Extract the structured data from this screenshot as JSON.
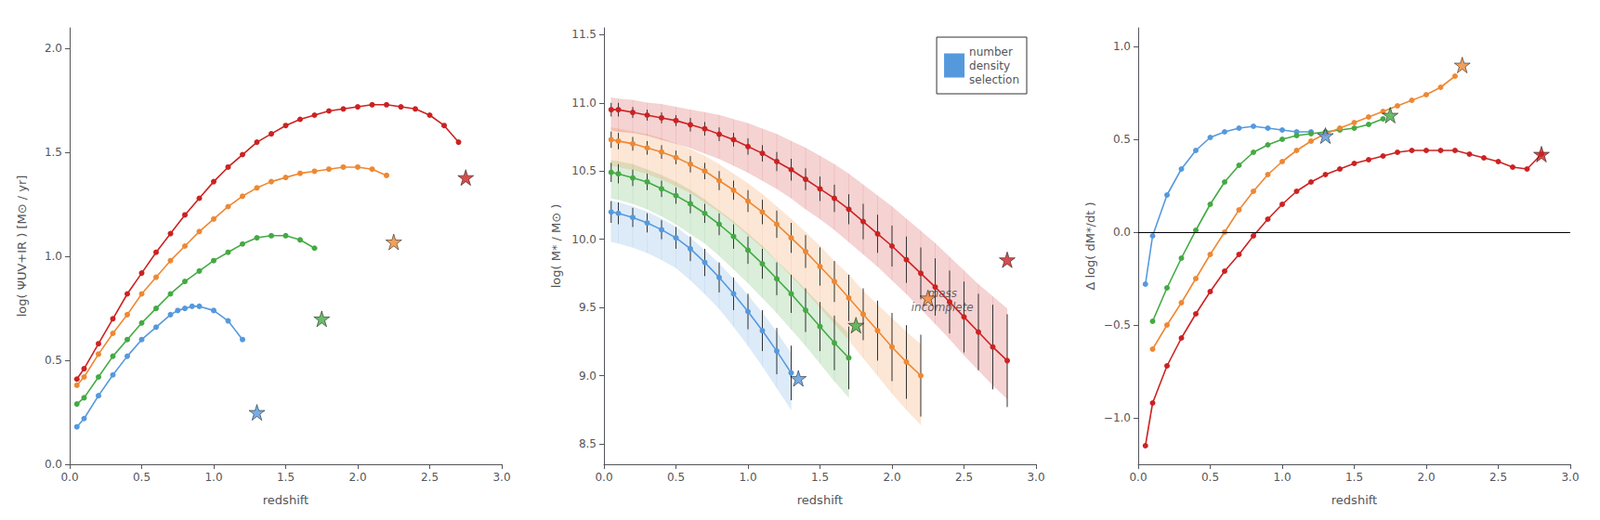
{
  "chart_data": [
    {
      "type": "line",
      "xlabel": "redshift",
      "ylabel": "log( ΨUV+IR ) [M⊙ / yr]",
      "xlim": [
        0.0,
        3.0
      ],
      "ylim": [
        0.0,
        2.1
      ],
      "xticks": [
        {
          "value": 0,
          "label": "0.0"
        },
        0.5,
        {
          "value": 1,
          "label": "1.0"
        },
        1.5,
        {
          "value": 2,
          "label": "2.0"
        },
        2.5,
        {
          "value": 3,
          "label": "3.0"
        }
      ],
      "yticks": [
        {
          "value": 0,
          "label": "0.0"
        },
        0.5,
        {
          "value": 1,
          "label": "1.0"
        },
        1.5,
        {
          "value": 2,
          "label": "2.0"
        }
      ],
      "grid": false,
      "series": [
        {
          "color": "#5599dd",
          "marker": "circle",
          "x": [
            0.05,
            0.1,
            0.2,
            0.3,
            0.4,
            0.5,
            0.6,
            0.7,
            0.75,
            0.8,
            0.85,
            0.9,
            1.0,
            1.1,
            1.2
          ],
          "values": [
            0.18,
            0.22,
            0.33,
            0.43,
            0.52,
            0.6,
            0.66,
            0.72,
            0.74,
            0.75,
            0.76,
            0.76,
            0.74,
            0.69,
            0.6
          ],
          "star_x": 1.3,
          "star_y": 0.25
        },
        {
          "color": "#44aa44",
          "marker": "circle",
          "x": [
            0.05,
            0.1,
            0.2,
            0.3,
            0.4,
            0.5,
            0.6,
            0.7,
            0.8,
            0.9,
            1.0,
            1.1,
            1.2,
            1.3,
            1.4,
            1.5,
            1.6,
            1.7
          ],
          "values": [
            0.29,
            0.32,
            0.42,
            0.52,
            0.6,
            0.68,
            0.75,
            0.82,
            0.88,
            0.93,
            0.98,
            1.02,
            1.06,
            1.09,
            1.1,
            1.1,
            1.08,
            1.04
          ],
          "star_x": 1.75,
          "star_y": 0.7
        },
        {
          "color": "#ee8833",
          "marker": "circle",
          "x": [
            0.05,
            0.1,
            0.2,
            0.3,
            0.4,
            0.5,
            0.6,
            0.7,
            0.8,
            0.9,
            1.0,
            1.1,
            1.2,
            1.3,
            1.4,
            1.5,
            1.6,
            1.7,
            1.8,
            1.9,
            2.0,
            2.1,
            2.2
          ],
          "values": [
            0.38,
            0.42,
            0.53,
            0.63,
            0.72,
            0.82,
            0.9,
            0.98,
            1.05,
            1.12,
            1.18,
            1.24,
            1.29,
            1.33,
            1.36,
            1.38,
            1.4,
            1.41,
            1.42,
            1.43,
            1.43,
            1.42,
            1.39
          ],
          "star_x": 2.25,
          "star_y": 1.07
        },
        {
          "color": "#cc2222",
          "marker": "circle",
          "x": [
            0.05,
            0.1,
            0.2,
            0.3,
            0.4,
            0.5,
            0.6,
            0.7,
            0.8,
            0.9,
            1.0,
            1.1,
            1.2,
            1.3,
            1.4,
            1.5,
            1.6,
            1.7,
            1.8,
            1.9,
            2.0,
            2.1,
            2.2,
            2.3,
            2.4,
            2.5,
            2.6,
            2.7
          ],
          "values": [
            0.41,
            0.46,
            0.58,
            0.7,
            0.82,
            0.92,
            1.02,
            1.11,
            1.2,
            1.28,
            1.36,
            1.43,
            1.49,
            1.55,
            1.59,
            1.63,
            1.66,
            1.68,
            1.7,
            1.71,
            1.72,
            1.73,
            1.73,
            1.72,
            1.71,
            1.68,
            1.63,
            1.55
          ],
          "star_x": 2.75,
          "star_y": 1.38
        }
      ]
    },
    {
      "type": "line",
      "xlabel": "redshift",
      "ylabel": "log( M* / M⊙ )",
      "xlim": [
        0.0,
        3.0
      ],
      "ylim": [
        8.35,
        11.55
      ],
      "xticks": [
        {
          "value": 0,
          "label": "0.0"
        },
        0.5,
        {
          "value": 1,
          "label": "1.0"
        },
        1.5,
        {
          "value": 2,
          "label": "2.0"
        },
        2.5,
        {
          "value": 3,
          "label": "3.0"
        }
      ],
      "yticks": [
        8.5,
        {
          "value": 9,
          "label": "9.0"
        },
        9.5,
        {
          "value": 10,
          "label": "10.0"
        },
        10.5,
        {
          "value": 11,
          "label": "11.0"
        },
        11.5
      ],
      "grid": false,
      "legend": "upper right",
      "band_label": "number\ndensity\nselection",
      "annotations": [
        {
          "text": "mass\nincomplete",
          "x": 2.35,
          "y": 9.55
        }
      ],
      "series": [
        {
          "color": "#5599dd",
          "marker": "circle",
          "x": [
            0.05,
            0.1,
            0.2,
            0.3,
            0.4,
            0.5,
            0.6,
            0.7,
            0.8,
            0.9,
            1.0,
            1.1,
            1.2,
            1.3
          ],
          "values": [
            10.2,
            10.19,
            10.16,
            10.12,
            10.07,
            10.01,
            9.93,
            9.83,
            9.72,
            9.6,
            9.47,
            9.33,
            9.18,
            9.02
          ],
          "err": [
            0.08,
            0.08,
            0.07,
            0.07,
            0.07,
            0.08,
            0.09,
            0.1,
            0.11,
            0.12,
            0.13,
            0.15,
            0.17,
            0.2
          ],
          "band_lo": [
            9.98,
            9.97,
            9.94,
            9.9,
            9.85,
            9.79,
            9.7,
            9.6,
            9.49,
            9.36,
            9.22,
            9.07,
            8.91,
            8.75
          ],
          "band_hi": [
            10.28,
            10.27,
            10.24,
            10.2,
            10.15,
            10.09,
            10.01,
            9.92,
            9.82,
            9.71,
            9.59,
            9.46,
            9.32,
            9.16
          ],
          "star_x": 1.35,
          "star_y": 8.98
        },
        {
          "color": "#44aa44",
          "marker": "circle",
          "x": [
            0.05,
            0.1,
            0.2,
            0.3,
            0.4,
            0.5,
            0.6,
            0.7,
            0.8,
            0.9,
            1.0,
            1.1,
            1.2,
            1.3,
            1.4,
            1.5,
            1.6,
            1.7
          ],
          "values": [
            10.49,
            10.48,
            10.45,
            10.42,
            10.37,
            10.32,
            10.26,
            10.19,
            10.11,
            10.02,
            9.92,
            9.82,
            9.71,
            9.6,
            9.48,
            9.36,
            9.24,
            9.13
          ],
          "err": [
            0.07,
            0.07,
            0.06,
            0.06,
            0.06,
            0.06,
            0.07,
            0.07,
            0.08,
            0.09,
            0.1,
            0.11,
            0.12,
            0.14,
            0.16,
            0.18,
            0.2,
            0.23
          ],
          "band_lo": [
            10.3,
            10.29,
            10.26,
            10.22,
            10.17,
            10.11,
            10.04,
            9.97,
            9.88,
            9.78,
            9.68,
            9.57,
            9.46,
            9.34,
            9.22,
            9.09,
            8.96,
            8.84
          ],
          "band_hi": [
            10.58,
            10.57,
            10.55,
            10.51,
            10.47,
            10.42,
            10.36,
            10.29,
            10.21,
            10.13,
            10.04,
            9.95,
            9.84,
            9.74,
            9.63,
            9.52,
            9.41,
            9.31
          ],
          "star_x": 1.75,
          "star_y": 9.37
        },
        {
          "color": "#ee8833",
          "marker": "circle",
          "x": [
            0.05,
            0.1,
            0.2,
            0.3,
            0.4,
            0.5,
            0.6,
            0.7,
            0.8,
            0.9,
            1.0,
            1.1,
            1.2,
            1.3,
            1.4,
            1.5,
            1.6,
            1.7,
            1.8,
            1.9,
            2.0,
            2.1,
            2.2
          ],
          "values": [
            10.73,
            10.72,
            10.7,
            10.67,
            10.64,
            10.6,
            10.55,
            10.5,
            10.43,
            10.36,
            10.28,
            10.2,
            10.11,
            10.01,
            9.91,
            9.8,
            9.69,
            9.57,
            9.45,
            9.33,
            9.21,
            9.1,
            9.0
          ],
          "err": [
            0.06,
            0.06,
            0.05,
            0.05,
            0.05,
            0.05,
            0.06,
            0.06,
            0.07,
            0.07,
            0.08,
            0.09,
            0.1,
            0.11,
            0.12,
            0.14,
            0.15,
            0.17,
            0.19,
            0.22,
            0.25,
            0.27,
            0.3
          ],
          "band_lo": [
            10.54,
            10.53,
            10.51,
            10.48,
            10.44,
            10.39,
            10.34,
            10.27,
            10.2,
            10.12,
            10.03,
            9.94,
            9.84,
            9.73,
            9.62,
            9.5,
            9.38,
            9.26,
            9.13,
            9.0,
            8.87,
            8.75,
            8.64
          ],
          "band_hi": [
            10.82,
            10.81,
            10.79,
            10.77,
            10.74,
            10.7,
            10.66,
            10.61,
            10.55,
            10.48,
            10.41,
            10.33,
            10.24,
            10.15,
            10.05,
            9.95,
            9.84,
            9.74,
            9.62,
            9.52,
            9.42,
            9.32,
            9.23
          ],
          "star_x": 2.25,
          "star_y": 9.57
        },
        {
          "color": "#cc2222",
          "marker": "circle",
          "x": [
            0.05,
            0.1,
            0.2,
            0.3,
            0.4,
            0.5,
            0.6,
            0.7,
            0.8,
            0.9,
            1.0,
            1.1,
            1.2,
            1.3,
            1.4,
            1.5,
            1.6,
            1.7,
            1.8,
            1.9,
            2.0,
            2.1,
            2.2,
            2.3,
            2.4,
            2.5,
            2.6,
            2.7,
            2.8
          ],
          "values": [
            10.95,
            10.95,
            10.93,
            10.91,
            10.89,
            10.87,
            10.84,
            10.81,
            10.77,
            10.73,
            10.68,
            10.63,
            10.57,
            10.51,
            10.44,
            10.37,
            10.3,
            10.22,
            10.13,
            10.04,
            9.95,
            9.85,
            9.75,
            9.65,
            9.54,
            9.43,
            9.32,
            9.21,
            9.11
          ],
          "err": [
            0.05,
            0.05,
            0.04,
            0.04,
            0.04,
            0.04,
            0.05,
            0.05,
            0.05,
            0.05,
            0.06,
            0.06,
            0.07,
            0.08,
            0.08,
            0.09,
            0.1,
            0.11,
            0.13,
            0.14,
            0.15,
            0.17,
            0.19,
            0.21,
            0.23,
            0.26,
            0.28,
            0.31,
            0.34
          ],
          "band_lo": [
            10.8,
            10.79,
            10.78,
            10.76,
            10.73,
            10.7,
            10.67,
            10.63,
            10.59,
            10.54,
            10.49,
            10.43,
            10.37,
            10.3,
            10.22,
            10.15,
            10.07,
            9.98,
            9.89,
            9.8,
            9.7,
            9.6,
            9.49,
            9.38,
            9.27,
            9.15,
            9.04,
            8.93,
            8.83
          ],
          "band_hi": [
            11.04,
            11.03,
            11.02,
            11.0,
            10.99,
            10.97,
            10.95,
            10.93,
            10.91,
            10.88,
            10.85,
            10.81,
            10.77,
            10.72,
            10.67,
            10.61,
            10.55,
            10.48,
            10.4,
            10.32,
            10.24,
            10.15,
            10.06,
            9.97,
            9.87,
            9.77,
            9.67,
            9.58,
            9.49
          ],
          "star_x": 2.8,
          "star_y": 9.85
        }
      ]
    },
    {
      "type": "line",
      "xlabel": "redshift",
      "ylabel": "Δ log( dM*/dt )",
      "xlim": [
        0.0,
        3.0
      ],
      "ylim": [
        -1.25,
        1.1
      ],
      "xticks": [
        {
          "value": 0,
          "label": "0.0"
        },
        0.5,
        {
          "value": 1,
          "label": "1.0"
        },
        1.5,
        {
          "value": 2,
          "label": "2.0"
        },
        2.5,
        {
          "value": 3,
          "label": "3.0"
        }
      ],
      "yticks": [
        {
          "value": -1,
          "label": "−1.0"
        },
        {
          "value": -0.5,
          "label": "−0.5"
        },
        {
          "value": 0,
          "label": "0.0"
        },
        0.5,
        {
          "value": 1,
          "label": "1.0"
        }
      ],
      "grid": false,
      "reference_line": {
        "value": 0,
        "color": "#000000"
      },
      "series": [
        {
          "color": "#5599dd",
          "marker": "circle",
          "x": [
            0.05,
            0.1,
            0.2,
            0.3,
            0.4,
            0.5,
            0.6,
            0.7,
            0.8,
            0.9,
            1.0,
            1.1,
            1.2
          ],
          "values": [
            -0.28,
            -0.02,
            0.2,
            0.34,
            0.44,
            0.51,
            0.54,
            0.56,
            0.57,
            0.56,
            0.55,
            0.54,
            0.54
          ],
          "star_x": 1.3,
          "star_y": 0.52
        },
        {
          "color": "#44aa44",
          "marker": "circle",
          "x": [
            0.1,
            0.2,
            0.3,
            0.4,
            0.5,
            0.6,
            0.7,
            0.8,
            0.9,
            1.0,
            1.1,
            1.2,
            1.3,
            1.4,
            1.5,
            1.6,
            1.7
          ],
          "values": [
            -0.48,
            -0.3,
            -0.14,
            0.01,
            0.15,
            0.27,
            0.36,
            0.43,
            0.47,
            0.5,
            0.52,
            0.53,
            0.54,
            0.55,
            0.56,
            0.58,
            0.61
          ],
          "star_x": 1.75,
          "star_y": 0.63
        },
        {
          "color": "#ee8833",
          "marker": "circle",
          "x": [
            0.1,
            0.2,
            0.3,
            0.4,
            0.5,
            0.6,
            0.7,
            0.8,
            0.9,
            1.0,
            1.1,
            1.2,
            1.3,
            1.4,
            1.5,
            1.6,
            1.7,
            1.8,
            1.9,
            2.0,
            2.1,
            2.2
          ],
          "values": [
            -0.63,
            -0.5,
            -0.38,
            -0.25,
            -0.12,
            0.0,
            0.12,
            0.22,
            0.31,
            0.38,
            0.44,
            0.49,
            0.53,
            0.56,
            0.59,
            0.62,
            0.65,
            0.68,
            0.71,
            0.74,
            0.78,
            0.84
          ],
          "star_x": 2.25,
          "star_y": 0.9
        },
        {
          "color": "#cc2222",
          "marker": "circle",
          "x": [
            0.05,
            0.1,
            0.2,
            0.3,
            0.4,
            0.5,
            0.6,
            0.7,
            0.8,
            0.9,
            1.0,
            1.1,
            1.2,
            1.3,
            1.4,
            1.5,
            1.6,
            1.7,
            1.8,
            1.9,
            2.0,
            2.1,
            2.2,
            2.3,
            2.4,
            2.5,
            2.6,
            2.7,
            2.8
          ],
          "values": [
            -1.15,
            -0.92,
            -0.72,
            -0.57,
            -0.44,
            -0.32,
            -0.21,
            -0.12,
            -0.02,
            0.07,
            0.15,
            0.22,
            0.27,
            0.31,
            0.34,
            0.37,
            0.39,
            0.41,
            0.43,
            0.44,
            0.44,
            0.44,
            0.44,
            0.42,
            0.4,
            0.38,
            0.35,
            0.34,
            0.42
          ],
          "star_x": 2.8,
          "star_y": 0.42
        }
      ]
    }
  ]
}
